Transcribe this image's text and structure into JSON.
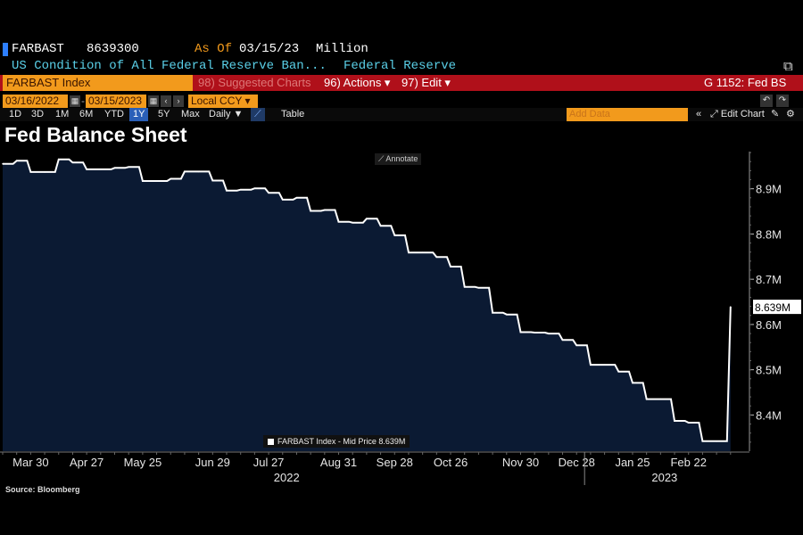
{
  "header": {
    "ticker": "FARBAST",
    "last_value": "8639300",
    "as_of_label": "As Of",
    "as_of_date": "03/15/23",
    "unit": "Million",
    "description": "US Condition of All Federal Reserve Ban...",
    "source_name": "Federal Reserve"
  },
  "toolbar": {
    "security": "FARBAST Index",
    "suggested": "98) Suggested Charts",
    "actions": "96) Actions ▾",
    "edit": "97) Edit ▾",
    "page_id": "G 1152: Fed BS",
    "start_date": "03/16/2022",
    "end_date": "03/15/2023",
    "currency": "Local CCY",
    "ranges": [
      "1D",
      "3D",
      "1M",
      "6M",
      "YTD",
      "1Y",
      "5Y",
      "Max"
    ],
    "active_range": "1Y",
    "frequency": "Daily ▼",
    "table_label": "Table",
    "add_data_placeholder": "Add Data",
    "edit_chart": "Edit Chart",
    "annotate": "Annotate"
  },
  "colors": {
    "accent_orange": "#f29a1c",
    "toolbar_red": "#b0101a",
    "area_fill": "#0b1a33",
    "line": "#ffffff"
  },
  "source": "Source: Bloomberg",
  "chart_data": {
    "type": "area",
    "title": "Fed Balance Sheet",
    "xlabel": "",
    "ylabel": "",
    "ylim": [
      8.32,
      8.99
    ],
    "y_ticks": [
      "8.9M",
      "8.8M",
      "8.7M",
      "8.6M",
      "8.5M",
      "8.4M"
    ],
    "x_ticks": [
      "Mar 30",
      "Apr 27",
      "May 25",
      "Jun 29",
      "Jul 27",
      "Aug 31",
      "Sep 28",
      "Oct 26",
      "Nov 30",
      "Dec 28",
      "Jan 25",
      "Feb 22"
    ],
    "year_labels": [
      "2022",
      "2023"
    ],
    "last_value_label": "8.639M",
    "legend": "FARBAST Index - Mid Price 8.639M",
    "grid": false,
    "series": [
      {
        "name": "FARBAST Index - Mid Price",
        "x": [
          "2022-03-16",
          "2022-03-23",
          "2022-03-30",
          "2022-04-06",
          "2022-04-13",
          "2022-04-20",
          "2022-04-27",
          "2022-05-04",
          "2022-05-11",
          "2022-05-18",
          "2022-05-25",
          "2022-06-01",
          "2022-06-08",
          "2022-06-15",
          "2022-06-22",
          "2022-06-29",
          "2022-07-06",
          "2022-07-13",
          "2022-07-20",
          "2022-07-27",
          "2022-08-03",
          "2022-08-10",
          "2022-08-17",
          "2022-08-24",
          "2022-08-31",
          "2022-09-07",
          "2022-09-14",
          "2022-09-21",
          "2022-09-28",
          "2022-10-05",
          "2022-10-12",
          "2022-10-19",
          "2022-10-26",
          "2022-11-02",
          "2022-11-09",
          "2022-11-16",
          "2022-11-23",
          "2022-11-30",
          "2022-12-07",
          "2022-12-14",
          "2022-12-21",
          "2022-12-28",
          "2023-01-04",
          "2023-01-11",
          "2023-01-18",
          "2023-01-25",
          "2023-02-01",
          "2023-02-08",
          "2023-02-15",
          "2023-02-22",
          "2023-03-01",
          "2023-03-08",
          "2023-03-15"
        ],
        "values": [
          8.955,
          8.962,
          8.937,
          8.937,
          8.965,
          8.958,
          8.943,
          8.943,
          8.946,
          8.948,
          8.917,
          8.917,
          8.922,
          8.938,
          8.938,
          8.918,
          8.896,
          8.898,
          8.901,
          8.891,
          8.876,
          8.88,
          8.851,
          8.853,
          8.827,
          8.825,
          8.834,
          8.818,
          8.797,
          8.759,
          8.759,
          8.749,
          8.728,
          8.683,
          8.681,
          8.626,
          8.622,
          8.583,
          8.582,
          8.58,
          8.566,
          8.554,
          8.511,
          8.511,
          8.496,
          8.471,
          8.435,
          8.435,
          8.387,
          8.383,
          8.342,
          8.342,
          8.639
        ]
      }
    ]
  }
}
